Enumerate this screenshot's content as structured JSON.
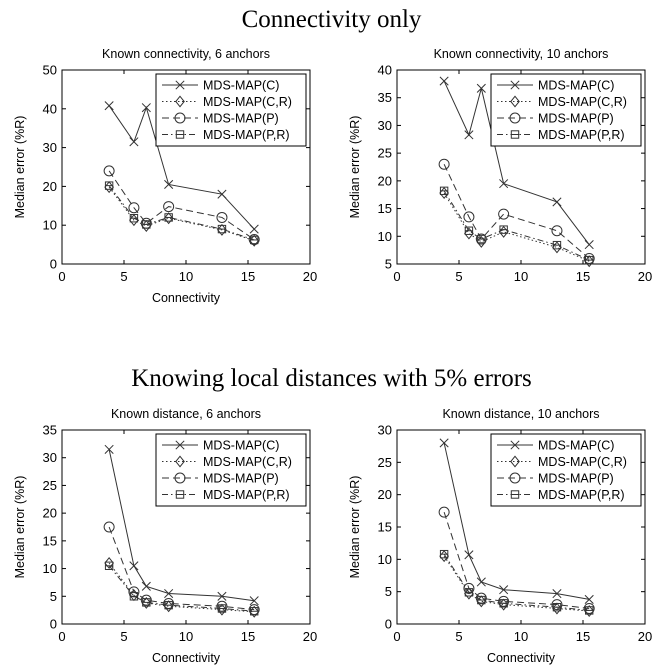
{
  "sections": [
    {
      "title": "Connectivity only"
    },
    {
      "title": "Knowing local distances with 5% errors"
    }
  ],
  "chart_data": [
    {
      "type": "line",
      "title": "Known connectivity, 6 anchors",
      "xlabel": "Connectivity",
      "ylabel": "Median error (%R)",
      "xlim": [
        0,
        20
      ],
      "ylim": [
        0,
        50
      ],
      "xticks": [
        0,
        5,
        10,
        15,
        20
      ],
      "yticks": [
        0,
        10,
        20,
        30,
        40,
        50
      ],
      "legend": "top-right",
      "grid": false,
      "x": [
        3.8,
        5.8,
        6.8,
        8.6,
        12.9,
        15.5
      ],
      "series": [
        {
          "name": "MDS-MAP(C)",
          "marker": "x",
          "dash": "solid",
          "values": [
            40.8,
            31.5,
            40.3,
            20.5,
            18.0,
            9.0
          ]
        },
        {
          "name": "MDS-MAP(C,R)",
          "marker": "diamond",
          "dash": "dotted",
          "values": [
            19.8,
            11.3,
            9.8,
            11.8,
            8.8,
            6.0
          ]
        },
        {
          "name": "MDS-MAP(P)",
          "marker": "circle",
          "dash": "dashed",
          "values": [
            24.0,
            14.5,
            10.5,
            14.8,
            12.0,
            6.3
          ]
        },
        {
          "name": "MDS-MAP(P,R)",
          "marker": "square",
          "dash": "dashdot",
          "values": [
            20.2,
            11.8,
            10.2,
            12.0,
            9.0,
            6.2
          ]
        }
      ]
    },
    {
      "type": "line",
      "title": "Known connectivity, 10 anchors",
      "xlabel": "",
      "ylabel": "Median error (%R)",
      "xlim": [
        0,
        20
      ],
      "ylim": [
        5,
        40
      ],
      "xticks": [
        0,
        5,
        10,
        15,
        20
      ],
      "yticks": [
        5,
        10,
        15,
        20,
        25,
        30,
        35,
        40
      ],
      "legend": "top-right",
      "grid": false,
      "x": [
        3.8,
        5.8,
        6.8,
        8.6,
        12.9,
        15.5
      ],
      "series": [
        {
          "name": "MDS-MAP(C)",
          "marker": "x",
          "dash": "solid",
          "values": [
            38.0,
            28.3,
            36.7,
            19.5,
            16.2,
            8.5
          ]
        },
        {
          "name": "MDS-MAP(C,R)",
          "marker": "diamond",
          "dash": "dotted",
          "values": [
            17.8,
            10.5,
            9.0,
            10.8,
            8.0,
            5.5
          ]
        },
        {
          "name": "MDS-MAP(P)",
          "marker": "circle",
          "dash": "dashed",
          "values": [
            23.0,
            13.5,
            9.5,
            14.0,
            11.0,
            6.0
          ]
        },
        {
          "name": "MDS-MAP(P,R)",
          "marker": "square",
          "dash": "dashdot",
          "values": [
            18.2,
            11.0,
            9.5,
            11.2,
            8.4,
            5.7
          ]
        }
      ]
    },
    {
      "type": "line",
      "title": "Known distance, 6 anchors",
      "xlabel": "Connectivity",
      "ylabel": "Median error (%R)",
      "xlim": [
        0,
        20
      ],
      "ylim": [
        0,
        35
      ],
      "xticks": [
        0,
        5,
        10,
        15,
        20
      ],
      "yticks": [
        0,
        5,
        10,
        15,
        20,
        25,
        30,
        35
      ],
      "legend": "top-right",
      "grid": false,
      "x": [
        3.8,
        5.8,
        6.8,
        8.6,
        12.9,
        15.5
      ],
      "series": [
        {
          "name": "MDS-MAP(C)",
          "marker": "x",
          "dash": "solid",
          "values": [
            31.5,
            10.5,
            6.8,
            5.5,
            5.0,
            4.2
          ]
        },
        {
          "name": "MDS-MAP(C,R)",
          "marker": "diamond",
          "dash": "dotted",
          "values": [
            11.0,
            5.2,
            3.8,
            3.2,
            2.6,
            2.2
          ]
        },
        {
          "name": "MDS-MAP(P)",
          "marker": "circle",
          "dash": "dashed",
          "values": [
            17.5,
            5.8,
            4.3,
            3.7,
            3.2,
            2.6
          ]
        },
        {
          "name": "MDS-MAP(P,R)",
          "marker": "square",
          "dash": "dashdot",
          "values": [
            10.5,
            5.0,
            3.9,
            3.4,
            2.8,
            2.3
          ]
        }
      ]
    },
    {
      "type": "line",
      "title": "Known distance, 10 anchors",
      "xlabel": "Connectivity",
      "ylabel": "Median error (%R)",
      "xlim": [
        0,
        20
      ],
      "ylim": [
        0,
        30
      ],
      "xticks": [
        0,
        5,
        10,
        15,
        20
      ],
      "yticks": [
        0,
        5,
        10,
        15,
        20,
        25,
        30
      ],
      "legend": "top-right",
      "grid": false,
      "x": [
        3.8,
        5.8,
        6.8,
        8.6,
        12.9,
        15.5
      ],
      "series": [
        {
          "name": "MDS-MAP(C)",
          "marker": "x",
          "dash": "solid",
          "values": [
            28.0,
            10.7,
            6.5,
            5.3,
            4.7,
            3.8
          ]
        },
        {
          "name": "MDS-MAP(C,R)",
          "marker": "diamond",
          "dash": "dotted",
          "values": [
            10.5,
            4.7,
            3.5,
            3.0,
            2.4,
            2.0
          ]
        },
        {
          "name": "MDS-MAP(P)",
          "marker": "circle",
          "dash": "dashed",
          "values": [
            17.3,
            5.5,
            4.0,
            3.5,
            3.0,
            2.4
          ]
        },
        {
          "name": "MDS-MAP(P,R)",
          "marker": "square",
          "dash": "dashdot",
          "values": [
            10.8,
            4.9,
            3.7,
            3.2,
            2.6,
            2.1
          ]
        }
      ]
    }
  ]
}
